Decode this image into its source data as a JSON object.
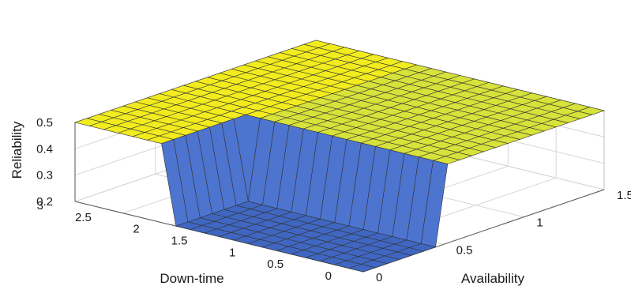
{
  "chart_data": {
    "type": "surface",
    "xlabel": "Down-time",
    "ylabel": "Availability",
    "zlabel": "Reliability",
    "x_ticks": [
      "0",
      "0.5",
      "1",
      "1.5",
      "2",
      "2.5",
      "3"
    ],
    "y_ticks": [
      "0",
      "0.5",
      "1",
      "1.5"
    ],
    "z_ticks": [
      "0.2",
      "0.3",
      "0.4",
      "0.5"
    ],
    "xlim": [
      0,
      3
    ],
    "ylim": [
      0,
      1.5
    ],
    "zlim": [
      0.2,
      0.5
    ],
    "grid": true,
    "colors": {
      "high": "#d7e23a",
      "high_bright": "#f2ec1e",
      "low": "#3f67c2",
      "low_side": "#4d74cf",
      "edge": "#333333"
    },
    "surface": {
      "x_breakpoint": 2.0,
      "y_breakpoint": 0.5,
      "z_low": 0.2,
      "z_high": 0.5,
      "description_rule": "low where Down-time < 2 and Availability < 0.5, otherwise high"
    }
  }
}
